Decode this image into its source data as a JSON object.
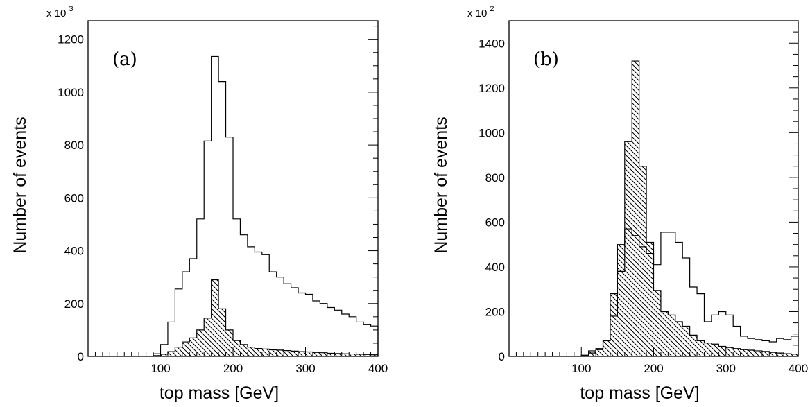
{
  "chart_data": [
    {
      "type": "histogram",
      "panel_label": "(a)",
      "multiplier_base": "x 10",
      "multiplier_exponent": "3",
      "xlabel": "top mass  [GeV]",
      "ylabel": "Number of events",
      "xlim": [
        0,
        400
      ],
      "ylim": [
        0,
        1270
      ],
      "x_ticks": [
        100,
        200,
        300,
        400
      ],
      "y_ticks": [
        0,
        200,
        400,
        600,
        800,
        1000,
        1200
      ],
      "bin_width": 10,
      "series": [
        {
          "style": "open",
          "bins": [
            {
              "x": 90,
              "y": 10
            },
            {
              "x": 100,
              "y": 45
            },
            {
              "x": 110,
              "y": 130
            },
            {
              "x": 120,
              "y": 255
            },
            {
              "x": 130,
              "y": 320
            },
            {
              "x": 140,
              "y": 370
            },
            {
              "x": 150,
              "y": 520
            },
            {
              "x": 160,
              "y": 815
            },
            {
              "x": 170,
              "y": 1135
            },
            {
              "x": 180,
              "y": 1040
            },
            {
              "x": 190,
              "y": 830
            },
            {
              "x": 200,
              "y": 520
            },
            {
              "x": 210,
              "y": 460
            },
            {
              "x": 220,
              "y": 415
            },
            {
              "x": 230,
              "y": 395
            },
            {
              "x": 240,
              "y": 385
            },
            {
              "x": 250,
              "y": 320
            },
            {
              "x": 260,
              "y": 300
            },
            {
              "x": 270,
              "y": 275
            },
            {
              "x": 280,
              "y": 260
            },
            {
              "x": 290,
              "y": 240
            },
            {
              "x": 300,
              "y": 235
            },
            {
              "x": 310,
              "y": 210
            },
            {
              "x": 320,
              "y": 200
            },
            {
              "x": 330,
              "y": 185
            },
            {
              "x": 340,
              "y": 175
            },
            {
              "x": 350,
              "y": 160
            },
            {
              "x": 360,
              "y": 150
            },
            {
              "x": 370,
              "y": 130
            },
            {
              "x": 380,
              "y": 120
            },
            {
              "x": 390,
              "y": 115
            }
          ]
        },
        {
          "style": "hatched",
          "bins": [
            {
              "x": 90,
              "y": 3
            },
            {
              "x": 100,
              "y": 8
            },
            {
              "x": 110,
              "y": 18
            },
            {
              "x": 120,
              "y": 35
            },
            {
              "x": 130,
              "y": 55
            },
            {
              "x": 140,
              "y": 70
            },
            {
              "x": 150,
              "y": 100
            },
            {
              "x": 160,
              "y": 145
            },
            {
              "x": 170,
              "y": 290
            },
            {
              "x": 180,
              "y": 180
            },
            {
              "x": 190,
              "y": 100
            },
            {
              "x": 200,
              "y": 60
            },
            {
              "x": 210,
              "y": 45
            },
            {
              "x": 220,
              "y": 35
            },
            {
              "x": 230,
              "y": 30
            },
            {
              "x": 240,
              "y": 28
            },
            {
              "x": 250,
              "y": 25
            },
            {
              "x": 260,
              "y": 24
            },
            {
              "x": 270,
              "y": 22
            },
            {
              "x": 280,
              "y": 20
            },
            {
              "x": 290,
              "y": 18
            },
            {
              "x": 300,
              "y": 17
            },
            {
              "x": 310,
              "y": 15
            },
            {
              "x": 320,
              "y": 14
            },
            {
              "x": 330,
              "y": 12
            },
            {
              "x": 340,
              "y": 11
            },
            {
              "x": 350,
              "y": 10
            },
            {
              "x": 360,
              "y": 9
            },
            {
              "x": 370,
              "y": 8
            },
            {
              "x": 380,
              "y": 7
            },
            {
              "x": 390,
              "y": 6
            }
          ]
        }
      ]
    },
    {
      "type": "histogram",
      "panel_label": "(b)",
      "multiplier_base": "x 10",
      "multiplier_exponent": "2",
      "xlabel": "top mass  [GeV]",
      "ylabel": "Number of events",
      "xlim": [
        0,
        400
      ],
      "ylim": [
        0,
        1500
      ],
      "x_ticks": [
        100,
        200,
        300,
        400
      ],
      "y_ticks": [
        0,
        200,
        400,
        600,
        800,
        1000,
        1200,
        1400
      ],
      "bin_width": 10,
      "series": [
        {
          "style": "open",
          "bins": [
            {
              "x": 100,
              "y": 5
            },
            {
              "x": 110,
              "y": 15
            },
            {
              "x": 120,
              "y": 30
            },
            {
              "x": 130,
              "y": 70
            },
            {
              "x": 140,
              "y": 180
            },
            {
              "x": 150,
              "y": 380
            },
            {
              "x": 160,
              "y": 570
            },
            {
              "x": 170,
              "y": 540
            },
            {
              "x": 180,
              "y": 490
            },
            {
              "x": 190,
              "y": 460
            },
            {
              "x": 200,
              "y": 410
            },
            {
              "x": 210,
              "y": 555
            },
            {
              "x": 220,
              "y": 555
            },
            {
              "x": 230,
              "y": 510
            },
            {
              "x": 240,
              "y": 440
            },
            {
              "x": 250,
              "y": 310
            },
            {
              "x": 260,
              "y": 280
            },
            {
              "x": 270,
              "y": 155
            },
            {
              "x": 280,
              "y": 185
            },
            {
              "x": 290,
              "y": 200
            },
            {
              "x": 300,
              "y": 185
            },
            {
              "x": 310,
              "y": 135
            },
            {
              "x": 320,
              "y": 90
            },
            {
              "x": 330,
              "y": 80
            },
            {
              "x": 340,
              "y": 75
            },
            {
              "x": 350,
              "y": 70
            },
            {
              "x": 360,
              "y": 65
            },
            {
              "x": 370,
              "y": 80
            },
            {
              "x": 380,
              "y": 75
            },
            {
              "x": 390,
              "y": 90
            }
          ]
        },
        {
          "style": "hatched",
          "bins": [
            {
              "x": 100,
              "y": 5
            },
            {
              "x": 110,
              "y": 25
            },
            {
              "x": 120,
              "y": 35
            },
            {
              "x": 130,
              "y": 70
            },
            {
              "x": 140,
              "y": 280
            },
            {
              "x": 150,
              "y": 500
            },
            {
              "x": 160,
              "y": 960
            },
            {
              "x": 170,
              "y": 1320
            },
            {
              "x": 180,
              "y": 850
            },
            {
              "x": 190,
              "y": 510
            },
            {
              "x": 200,
              "y": 295
            },
            {
              "x": 210,
              "y": 200
            },
            {
              "x": 220,
              "y": 185
            },
            {
              "x": 230,
              "y": 155
            },
            {
              "x": 240,
              "y": 135
            },
            {
              "x": 250,
              "y": 95
            },
            {
              "x": 260,
              "y": 70
            },
            {
              "x": 270,
              "y": 60
            },
            {
              "x": 280,
              "y": 55
            },
            {
              "x": 290,
              "y": 45
            },
            {
              "x": 300,
              "y": 40
            },
            {
              "x": 310,
              "y": 35
            },
            {
              "x": 320,
              "y": 30
            },
            {
              "x": 330,
              "y": 28
            },
            {
              "x": 340,
              "y": 25
            },
            {
              "x": 350,
              "y": 22
            },
            {
              "x": 360,
              "y": 18
            },
            {
              "x": 370,
              "y": 15
            },
            {
              "x": 380,
              "y": 12
            },
            {
              "x": 390,
              "y": 10
            }
          ]
        }
      ]
    }
  ]
}
